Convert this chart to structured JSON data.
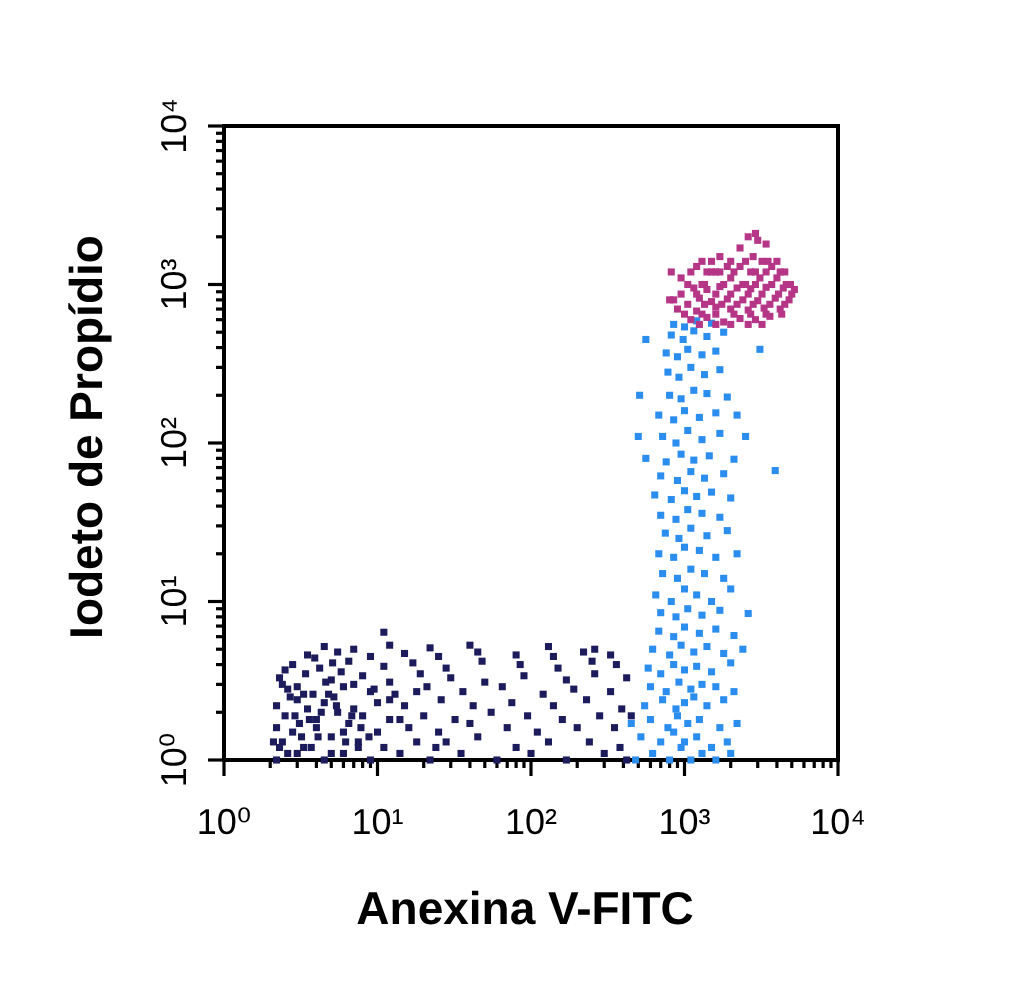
{
  "chart_data": {
    "type": "scatter",
    "xlabel": "Anexina V-FITC",
    "ylabel": "Iodeto de Propídio",
    "log": "xy",
    "marker": "square",
    "xlim": [
      1,
      10000
    ],
    "ylim": [
      1,
      10000
    ],
    "xticks": [
      {
        "value": 1,
        "label": "10⁰"
      },
      {
        "value": 2,
        "label": null
      },
      {
        "value": 3,
        "label": null
      },
      {
        "value": 4,
        "label": null
      },
      {
        "value": 5,
        "label": null
      },
      {
        "value": 6,
        "label": null
      },
      {
        "value": 7,
        "label": null
      },
      {
        "value": 8,
        "label": null
      },
      {
        "value": 9,
        "label": null
      },
      {
        "value": 10,
        "label": "10¹"
      },
      {
        "value": 20,
        "label": null
      },
      {
        "value": 30,
        "label": null
      },
      {
        "value": 40,
        "label": null
      },
      {
        "value": 50,
        "label": null
      },
      {
        "value": 60,
        "label": null
      },
      {
        "value": 70,
        "label": null
      },
      {
        "value": 80,
        "label": null
      },
      {
        "value": 90,
        "label": null
      },
      {
        "value": 100,
        "label": "10²"
      },
      {
        "value": 200,
        "label": null
      },
      {
        "value": 300,
        "label": null
      },
      {
        "value": 400,
        "label": null
      },
      {
        "value": 500,
        "label": null
      },
      {
        "value": 600,
        "label": null
      },
      {
        "value": 700,
        "label": null
      },
      {
        "value": 800,
        "label": null
      },
      {
        "value": 900,
        "label": null
      },
      {
        "value": 1000,
        "label": "10³"
      },
      {
        "value": 2000,
        "label": null
      },
      {
        "value": 3000,
        "label": null
      },
      {
        "value": 4000,
        "label": null
      },
      {
        "value": 5000,
        "label": null
      },
      {
        "value": 6000,
        "label": null
      },
      {
        "value": 7000,
        "label": null
      },
      {
        "value": 8000,
        "label": null
      },
      {
        "value": 9000,
        "label": null
      },
      {
        "value": 10000,
        "label": "10⁴"
      }
    ],
    "yticks": [
      {
        "value": 1,
        "label": "10⁰"
      },
      {
        "value": 2,
        "label": null
      },
      {
        "value": 3,
        "label": null
      },
      {
        "value": 4,
        "label": null
      },
      {
        "value": 5,
        "label": null
      },
      {
        "value": 6,
        "label": null
      },
      {
        "value": 7,
        "label": null
      },
      {
        "value": 8,
        "label": null
      },
      {
        "value": 9,
        "label": null
      },
      {
        "value": 10,
        "label": "10¹"
      },
      {
        "value": 20,
        "label": null
      },
      {
        "value": 30,
        "label": null
      },
      {
        "value": 40,
        "label": null
      },
      {
        "value": 50,
        "label": null
      },
      {
        "value": 60,
        "label": null
      },
      {
        "value": 70,
        "label": null
      },
      {
        "value": 80,
        "label": null
      },
      {
        "value": 90,
        "label": null
      },
      {
        "value": 100,
        "label": "10²"
      },
      {
        "value": 200,
        "label": null
      },
      {
        "value": 300,
        "label": null
      },
      {
        "value": 400,
        "label": null
      },
      {
        "value": 500,
        "label": null
      },
      {
        "value": 600,
        "label": null
      },
      {
        "value": 700,
        "label": null
      },
      {
        "value": 800,
        "label": null
      },
      {
        "value": 900,
        "label": null
      },
      {
        "value": 1000,
        "label": "10³"
      },
      {
        "value": 2000,
        "label": null
      },
      {
        "value": 3000,
        "label": null
      },
      {
        "value": 4000,
        "label": null
      },
      {
        "value": 5000,
        "label": null
      },
      {
        "value": 6000,
        "label": null
      },
      {
        "value": 7000,
        "label": null
      },
      {
        "value": 8000,
        "label": null
      },
      {
        "value": 9000,
        "label": null
      },
      {
        "value": 10000,
        "label": "10⁴"
      }
    ],
    "series": [
      {
        "color": "#1c1c5c",
        "x": [
          2.2,
          3,
          4.5,
          6,
          9,
          14,
          22,
          35,
          60,
          100,
          170,
          300,
          420,
          2.4,
          3.3,
          5,
          7.5,
          11,
          18,
          28,
          45,
          80,
          130,
          240,
          380,
          2.2,
          2.8,
          4,
          6.5,
          10,
          16,
          25,
          40,
          70,
          110,
          200,
          350,
          2.5,
          3.6,
          5.5,
          8,
          12,
          20,
          32,
          55,
          95,
          160,
          280,
          450,
          2.2,
          3,
          4.5,
          7,
          10,
          15,
          26,
          42,
          75,
          140,
          230,
          390,
          2.6,
          3.8,
          6,
          9,
          13,
          21,
          36,
          65,
          120,
          190,
          330,
          2.3,
          3.4,
          5,
          8,
          12,
          19,
          30,
          50,
          90,
          170,
          260,
          420,
          2.8,
          4.2,
          6.5,
          11,
          17,
          28,
          48,
          85,
          150,
          250,
          360,
          3.5,
          5.5,
          9,
          15,
          25,
          45,
          80,
          140,
          220,
          330,
          4.5,
          7,
          12,
          22,
          40,
          130,
          260,
          11,
          2.3,
          3.2,
          4,
          5,
          2.7,
          3.5,
          4.8,
          6,
          7.5,
          2.4,
          3,
          5.8,
          2.1,
          2.6,
          3.1,
          3.7,
          4.3,
          5.2,
          6.2,
          7.8,
          9.5,
          12,
          2.9,
          4.1,
          5.4,
          7,
          8.8,
          3.3,
          4.6,
          6.8,
          2.5,
          3.9,
          5.1,
          14,
          18,
          24
        ],
        "values": [
          1.0,
          1.1,
          1.0,
          1.1,
          1.0,
          1.1,
          1.0,
          1.1,
          1.0,
          1.1,
          1.0,
          1.1,
          1.0,
          1.3,
          1.2,
          1.4,
          1.3,
          1.2,
          1.3,
          1.3,
          1.4,
          1.2,
          1.3,
          1.3,
          1.2,
          1.6,
          1.5,
          1.6,
          1.7,
          1.5,
          1.6,
          1.5,
          1.7,
          1.6,
          1.5,
          1.6,
          1.6,
          1.9,
          1.8,
          2.0,
          1.9,
          1.8,
          1.9,
          1.8,
          2.0,
          1.9,
          1.8,
          1.9,
          1.9,
          2.2,
          2.4,
          2.3,
          2.1,
          2.3,
          2.2,
          2.4,
          2.2,
          2.3,
          2.2,
          2.4,
          2.1,
          2.8,
          2.6,
          2.9,
          2.7,
          2.6,
          2.9,
          2.7,
          2.9,
          2.6,
          2.8,
          2.7,
          3.3,
          3.5,
          3.2,
          3.4,
          3.1,
          3.5,
          3.3,
          3.1,
          3.4,
          3.2,
          3.5,
          3.3,
          4.0,
          3.8,
          4.2,
          3.9,
          4.1,
          3.8,
          4.2,
          4.0,
          3.8,
          4.2,
          4.0,
          4.6,
          4.8,
          4.5,
          4.7,
          4.5,
          4.8,
          4.6,
          4.5,
          4.8,
          4.6,
          5.2,
          5.0,
          5.3,
          5.1,
          5.3,
          5.2,
          5.0,
          6.4,
          1.2,
          1.4,
          1.8,
          1.1,
          2.5,
          2.1,
          2.6,
          1.5,
          1.2,
          3.0,
          2.9,
          3.6,
          1.3,
          1.1,
          1.7,
          1.2,
          2.0,
          2.5,
          1.3,
          1.6,
          2.8,
          2.4,
          1.9,
          1.4,
          2.2,
          3.0,
          1.4,
          2.6,
          3.1,
          1.9,
          3.7,
          4.4,
          4.1,
          1.8,
          2.7,
          1.2
        ]
      },
      {
        "color": "#2b8ded",
        "x": [
          480,
          620,
          800,
          950,
          1100,
          1300,
          1600,
          2000,
          520,
          700,
          850,
          1000,
          1200,
          1500,
          1900,
          450,
          600,
          780,
          900,
          1050,
          1250,
          1700,
          2200,
          550,
          720,
          880,
          1000,
          1150,
          1400,
          1800,
          600,
          760,
          920,
          1100,
          1300,
          1600,
          2100,
          580,
          700,
          850,
          1000,
          1200,
          1500,
          2000,
          620,
          800,
          950,
          1150,
          1400,
          1800,
          2400,
          680,
          850,
          1000,
          1250,
          1600,
          2100,
          700,
          880,
          1050,
          1300,
          1700,
          2600,
          650,
          820,
          1000,
          1200,
          1500,
          2000,
          720,
          900,
          1100,
          1350,
          1800,
          680,
          850,
          1000,
          1250,
          1600,
          2200,
          750,
          920,
          1100,
          1400,
          1900,
          700,
          880,
          1050,
          1300,
          1700,
          640,
          820,
          1000,
          1200,
          1500,
          2000,
          700,
          900,
          1100,
          1350,
          1800,
          560,
          760,
          950,
          1150,
          1450,
          2100,
          720,
          880,
          1050,
          1300,
          1700,
          2500,
          680,
          850,
          1000,
          1250,
          1600,
          2200,
          800,
          950,
          1150,
          1400,
          1900,
          780,
          920,
          1100,
          1350,
          1700,
          760,
          900,
          1050,
          1300,
          1600,
          820,
          980,
          1150,
          1400,
          1800,
          850,
          1000,
          1200,
          1500,
          3900,
          560,
          510,
          3100,
          500
        ],
        "values": [
          1.0,
          1.1,
          1.0,
          1.2,
          1.0,
          1.1,
          1.0,
          1.1,
          1.4,
          1.3,
          1.5,
          1.3,
          1.4,
          1.2,
          1.3,
          1.7,
          1.8,
          1.6,
          1.9,
          1.7,
          1.8,
          1.6,
          1.7,
          2.2,
          2.4,
          2.1,
          2.3,
          2.5,
          2.2,
          2.4,
          2.9,
          2.7,
          3.1,
          2.8,
          3.0,
          2.9,
          2.7,
          3.8,
          3.5,
          4.0,
          3.7,
          3.9,
          3.6,
          4.1,
          5.0,
          4.6,
          5.3,
          4.8,
          5.2,
          4.7,
          5.0,
          6.5,
          6.0,
          6.9,
          6.3,
          6.7,
          6.1,
          8.5,
          8.0,
          9.0,
          8.2,
          8.8,
          8.4,
          11,
          10,
          12,
          11,
          10,
          12,
          15,
          14,
          16,
          15,
          14,
          20,
          19,
          22,
          21,
          19,
          20,
          27,
          25,
          29,
          26,
          28,
          35,
          33,
          38,
          36,
          34,
          47,
          44,
          50,
          46,
          49,
          45,
          62,
          58,
          66,
          60,
          64,
          80,
          76,
          85,
          78,
          83,
          79,
          110,
          100,
          120,
          105,
          115,
          110,
          150,
          140,
          160,
          145,
          155,
          150,
          200,
          190,
          215,
          205,
          195,
          280,
          260,
          300,
          270,
          290,
          370,
          350,
          390,
          360,
          380,
          480,
          450,
          510,
          470,
          500,
          560,
          540,
          590,
          570,
          67,
          450,
          200,
          390,
          110
        ]
      },
      {
        "color": "#b53586",
        "x": [
          1100,
          1400,
          1800,
          2300,
          2900,
          3600,
          900,
          1200,
          1600,
          2000,
          2600,
          3300,
          4200,
          850,
          1250,
          1500,
          1900,
          2400,
          3000,
          3900,
          4800,
          1150,
          1400,
          1700,
          2200,
          2700,
          3400,
          4400,
          5200,
          950,
          1300,
          1600,
          2000,
          2500,
          3100,
          4000,
          4900,
          1200,
          1500,
          1900,
          2300,
          2900,
          3700,
          4500,
          1300,
          1700,
          2800,
          3500,
          2300,
          2600,
          2900,
          3400,
          3000,
          800,
          820,
          1000,
          1300,
          1600,
          2100,
          2700,
          3400,
          4300,
          1050,
          1350,
          1750,
          2200,
          2800,
          3600,
          4500,
          950,
          1200,
          1600,
          2000,
          2600,
          3200,
          4100,
          5000,
          1050,
          1350,
          1800,
          2400,
          2900,
          3700,
          4600,
          1100,
          1400,
          1700,
          2100,
          2700,
          3400,
          4200,
          1500,
          2000,
          2500,
          3200,
          4000,
          1250,
          1600,
          2000,
          2600,
          3200
        ],
        "values": [
          600,
          620,
          580,
          610,
          600,
          630,
          700,
          680,
          720,
          700,
          690,
          710,
          700,
          800,
          820,
          780,
          810,
          800,
          790,
          820,
          800,
          950,
          930,
          970,
          950,
          940,
          960,
          950,
          930,
          1100,
          1000,
          1200,
          1100,
          1000,
          1100,
          1100,
          1000,
          1300,
          1200,
          1300,
          1300,
          1200,
          1300,
          1200,
          1400,
          1500,
          1500,
          1400,
          1700,
          2000,
          2100,
          1800,
          1900,
          800,
          1200,
          650,
          650,
          650,
          650,
          650,
          650,
          650,
          750,
          750,
          750,
          750,
          750,
          750,
          750,
          870,
          870,
          870,
          870,
          870,
          870,
          870,
          870,
          1000,
          1000,
          1000,
          1000,
          1000,
          1000,
          1000,
          1200,
          1200,
          1200,
          1200,
          1200,
          1200,
          1200,
          1400,
          1400,
          1400,
          1400,
          1400,
          560,
          560,
          560,
          560,
          560
        ]
      }
    ]
  }
}
